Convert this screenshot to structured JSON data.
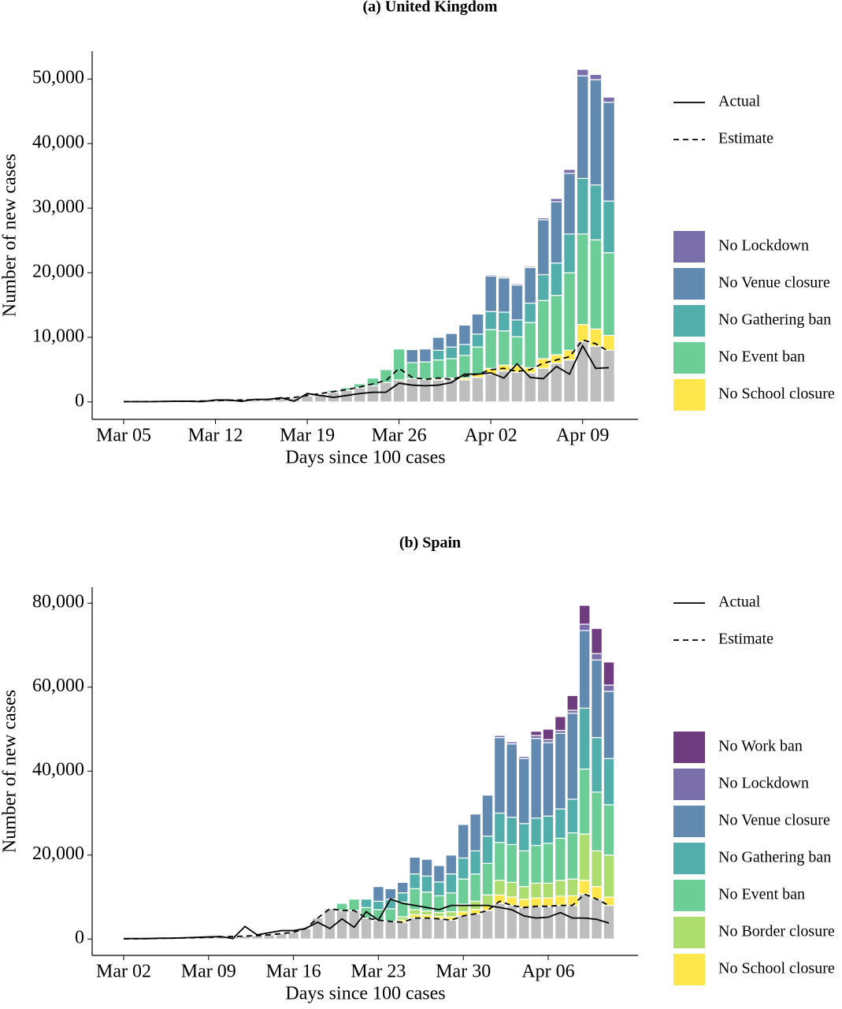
{
  "chart_data": [
    {
      "type": "bar",
      "stacked": true,
      "title": "(a) United Kingdom",
      "x_label": "Days since 100 cases",
      "y_label": "Number of new cases",
      "categories": [
        "Mar 05",
        null,
        null,
        null,
        null,
        null,
        null,
        "Mar 12",
        null,
        null,
        null,
        null,
        null,
        null,
        "Mar 19",
        null,
        null,
        null,
        null,
        null,
        null,
        "Mar 26",
        null,
        null,
        null,
        null,
        null,
        null,
        "Apr 02",
        null,
        null,
        null,
        null,
        null,
        null,
        "Apr 09",
        null,
        null
      ],
      "base": {
        "color": "#bebebe",
        "values": [
          50,
          50,
          50,
          100,
          100,
          100,
          150,
          200,
          250,
          300,
          300,
          400,
          500,
          600,
          900,
          1200,
          1500,
          1800,
          2200,
          2500,
          3000,
          3400,
          3600,
          3500,
          3400,
          3500,
          3400,
          3800,
          4300,
          4800,
          4600,
          4500,
          5200,
          6000,
          6500,
          9300,
          8600,
          8000
        ]
      },
      "series": [
        {
          "name": "No School closure",
          "color": "#fde74c",
          "values": [
            0,
            0,
            0,
            0,
            0,
            0,
            0,
            0,
            0,
            0,
            0,
            0,
            0,
            0,
            0,
            0,
            0,
            0,
            0,
            0,
            0,
            0,
            0,
            0,
            200,
            200,
            300,
            500,
            900,
            900,
            1000,
            800,
            1500,
            1300,
            1500,
            2700,
            2700,
            2300
          ]
        },
        {
          "name": "No Event ban",
          "color": "#6ccd97",
          "values": [
            0,
            0,
            0,
            0,
            0,
            0,
            0,
            0,
            0,
            0,
            0,
            0,
            0,
            0,
            0,
            0,
            300,
            400,
            600,
            1200,
            2000,
            4800,
            2500,
            2700,
            2900,
            3000,
            3500,
            4200,
            6000,
            5300,
            4500,
            7000,
            9000,
            9200,
            12000,
            14000,
            13800,
            12800
          ]
        },
        {
          "name": "No Gathering ban",
          "color": "#52aeab",
          "values": [
            0,
            0,
            0,
            0,
            0,
            0,
            0,
            0,
            0,
            0,
            0,
            0,
            0,
            0,
            0,
            0,
            0,
            0,
            0,
            0,
            0,
            0,
            0,
            0,
            1500,
            1800,
            1700,
            2000,
            2800,
            2900,
            2600,
            3000,
            4000,
            5000,
            6000,
            8600,
            8500,
            8000
          ]
        },
        {
          "name": "No Venue closure",
          "color": "#6289af",
          "values": [
            0,
            0,
            0,
            0,
            0,
            0,
            0,
            0,
            0,
            0,
            0,
            0,
            0,
            0,
            0,
            0,
            0,
            0,
            0,
            0,
            0,
            0,
            2000,
            2000,
            2000,
            2100,
            3000,
            3100,
            5500,
            5300,
            5400,
            5500,
            8500,
            9500,
            9400,
            15900,
            16300,
            15300
          ]
        },
        {
          "name": "No Lockdown",
          "color": "#7b6fab",
          "values": [
            0,
            0,
            0,
            0,
            0,
            0,
            0,
            0,
            0,
            0,
            0,
            0,
            0,
            0,
            0,
            0,
            0,
            0,
            0,
            0,
            0,
            0,
            0,
            0,
            0,
            0,
            0,
            0,
            200,
            200,
            200,
            200,
            300,
            500,
            600,
            1000,
            800,
            800
          ]
        }
      ],
      "lines": [
        {
          "name": "Actual",
          "style": "solid",
          "color": "#000000",
          "values": [
            50,
            50,
            50,
            80,
            100,
            100,
            50,
            300,
            300,
            100,
            400,
            400,
            650,
            100,
            1300,
            1000,
            700,
            1000,
            1300,
            1500,
            1500,
            2900,
            2600,
            2500,
            2600,
            3000,
            4300,
            4300,
            4500,
            3700,
            5900,
            3800,
            3600,
            5500,
            4300,
            8700,
            5200,
            5300
          ]
        },
        {
          "name": "Estimate",
          "style": "dashed",
          "color": "#000000",
          "values": [
            50,
            50,
            50,
            80,
            100,
            100,
            150,
            200,
            250,
            300,
            350,
            400,
            500,
            700,
            1000,
            1300,
            1600,
            1900,
            2300,
            2800,
            3300,
            5200,
            3800,
            3500,
            3700,
            3500,
            4000,
            4300,
            5000,
            5200,
            4700,
            5000,
            6000,
            6500,
            7000,
            9600,
            9000,
            7800
          ]
        }
      ],
      "ylim": [
        -2700,
        54300
      ],
      "yticks": [
        0,
        {
          "value": 10000,
          "label": "10,000"
        },
        {
          "value": 20000,
          "label": "20,000"
        },
        {
          "value": 30000,
          "label": "30,000"
        },
        {
          "value": 40000,
          "label": "40,000"
        },
        {
          "value": 50000,
          "label": "50,000"
        }
      ]
    },
    {
      "type": "bar",
      "stacked": true,
      "title": "(b) Spain",
      "x_label": "Days since 100 cases",
      "y_label": "Number of new cases",
      "categories": [
        "Mar 02",
        null,
        null,
        null,
        null,
        null,
        null,
        "Mar 09",
        null,
        null,
        null,
        null,
        null,
        null,
        "Mar 16",
        null,
        null,
        null,
        null,
        null,
        null,
        "Mar 23",
        null,
        null,
        null,
        null,
        null,
        null,
        "Mar 30",
        null,
        null,
        null,
        null,
        null,
        null,
        "Apr 06",
        null,
        null,
        null,
        null,
        null
      ],
      "base": {
        "color": "#bebebe",
        "values": [
          50,
          50,
          100,
          150,
          200,
          250,
          300,
          400,
          500,
          600,
          700,
          800,
          1000,
          1300,
          1600,
          2500,
          5000,
          7200,
          6800,
          6800,
          5000,
          4500,
          4200,
          4000,
          5000,
          5000,
          4800,
          4500,
          5500,
          6000,
          6800,
          8500,
          8000,
          7500,
          7800,
          7800,
          8000,
          8000,
          10700,
          9500,
          8000
        ]
      },
      "series": [
        {
          "name": "No School closure",
          "color": "#fde74c",
          "values": [
            0,
            0,
            0,
            0,
            0,
            0,
            0,
            0,
            0,
            0,
            0,
            0,
            0,
            0,
            0,
            0,
            0,
            0,
            0,
            0,
            0,
            0,
            0,
            500,
            800,
            700,
            600,
            800,
            1000,
            1000,
            1200,
            2000,
            2000,
            2000,
            2000,
            2000,
            2200,
            2300,
            3300,
            3000,
            2000
          ]
        },
        {
          "name": "No Border closure",
          "color": "#addc6f",
          "values": [
            0,
            0,
            0,
            0,
            0,
            0,
            0,
            0,
            0,
            0,
            0,
            0,
            0,
            0,
            0,
            0,
            0,
            0,
            0,
            0,
            0,
            0,
            0,
            800,
            1200,
            1000,
            900,
            1200,
            1800,
            2000,
            2500,
            3500,
            3500,
            3000,
            3500,
            3500,
            3800,
            4000,
            11000,
            8500,
            10000
          ]
        },
        {
          "name": "No Event ban",
          "color": "#6ccd97",
          "values": [
            0,
            0,
            0,
            0,
            0,
            0,
            0,
            0,
            0,
            0,
            0,
            0,
            0,
            0,
            0,
            0,
            0,
            0,
            1700,
            2700,
            2500,
            2500,
            3000,
            3500,
            5000,
            4500,
            4000,
            4500,
            6000,
            6500,
            7500,
            9000,
            9000,
            8500,
            9000,
            9500,
            10000,
            11000,
            15500,
            14000,
            12000
          ]
        },
        {
          "name": "No Gathering ban",
          "color": "#52aeab",
          "values": [
            0,
            0,
            0,
            0,
            0,
            0,
            0,
            0,
            0,
            0,
            0,
            0,
            0,
            0,
            0,
            0,
            0,
            0,
            0,
            0,
            2000,
            2000,
            2300,
            2200,
            3500,
            3800,
            3300,
            4500,
            5000,
            5500,
            6500,
            7000,
            6500,
            6500,
            6500,
            6500,
            7000,
            8000,
            14500,
            13000,
            11000
          ]
        },
        {
          "name": "No Venue closure",
          "color": "#6289af",
          "values": [
            0,
            0,
            0,
            0,
            0,
            0,
            0,
            0,
            0,
            0,
            0,
            0,
            0,
            0,
            0,
            0,
            0,
            0,
            0,
            0,
            0,
            3500,
            2500,
            2500,
            4000,
            4000,
            3900,
            4500,
            8000,
            8800,
            9800,
            18000,
            17500,
            15500,
            19000,
            17500,
            18000,
            20500,
            18500,
            18500,
            16000
          ]
        },
        {
          "name": "No Lockdown",
          "color": "#7b6fab",
          "values": [
            0,
            0,
            0,
            0,
            0,
            0,
            0,
            0,
            0,
            0,
            0,
            0,
            0,
            0,
            0,
            0,
            0,
            0,
            0,
            0,
            0,
            0,
            0,
            0,
            0,
            0,
            0,
            0,
            200,
            200,
            200,
            500,
            500,
            500,
            700,
            700,
            700,
            700,
            1500,
            1500,
            1500
          ]
        },
        {
          "name": "No Work ban",
          "color": "#6f3d7f",
          "values": [
            0,
            0,
            0,
            0,
            0,
            0,
            0,
            0,
            0,
            0,
            0,
            0,
            0,
            0,
            0,
            0,
            0,
            0,
            0,
            0,
            0,
            0,
            0,
            0,
            0,
            0,
            0,
            0,
            0,
            0,
            0,
            0,
            0,
            0,
            1000,
            2500,
            3300,
            3500,
            4500,
            6000,
            5500
          ]
        }
      ],
      "lines": [
        {
          "name": "Actual",
          "style": "solid",
          "color": "#000000",
          "values": [
            100,
            100,
            100,
            200,
            200,
            300,
            400,
            500,
            600,
            100,
            3000,
            1000,
            1500,
            2000,
            2000,
            2500,
            4000,
            2500,
            4800,
            2800,
            6500,
            4500,
            9500,
            8500,
            8000,
            7500,
            7000,
            8000,
            8000,
            8000,
            8000,
            7500,
            7000,
            5500,
            5000,
            5200,
            6300,
            5000,
            5000,
            4700,
            3800
          ]
        },
        {
          "name": "Estimate",
          "style": "dashed",
          "color": "#000000",
          "values": [
            50,
            50,
            100,
            150,
            200,
            250,
            300,
            400,
            500,
            600,
            700,
            800,
            1000,
            1300,
            1600,
            2500,
            5000,
            7200,
            6800,
            6800,
            5000,
            4500,
            4200,
            4000,
            5000,
            5000,
            4800,
            4500,
            5500,
            6000,
            6800,
            9000,
            8000,
            7500,
            7800,
            7800,
            8000,
            8000,
            10700,
            9500,
            8000
          ]
        }
      ],
      "ylim": [
        -3900,
        83800
      ],
      "yticks": [
        0,
        {
          "value": 20000,
          "label": "20,000"
        },
        {
          "value": 40000,
          "label": "40,000"
        },
        {
          "value": 60000,
          "label": "60,000"
        },
        {
          "value": 80000,
          "label": "80,000"
        }
      ]
    }
  ]
}
